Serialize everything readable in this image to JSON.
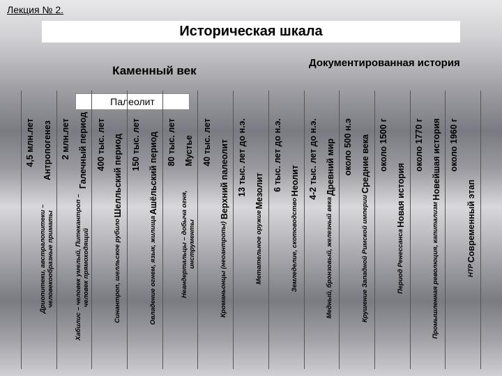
{
  "lecture": "Лекция № 2.",
  "title": "Историческая шкала",
  "era_left": "Каменный век",
  "era_right": "Документированная история",
  "paleo": "Палеолит",
  "cols": [
    {
      "date": "4,5 млн.лет",
      "name": "Антропогенез",
      "desc": "Дриопитеки, австралопитеки – человекообразные приматы"
    },
    {
      "date": "2 млн.лет",
      "name": "Галечный период",
      "desc": "Хабилис – человек умелый, Питекантроп – человек прямоходящий"
    },
    {
      "date": "400 тыс. лет",
      "name": "Шелльский период",
      "desc": "Синантроп, шелльское рубило"
    },
    {
      "date": "150 тыс. лет",
      "name": "Ашёльский период",
      "desc": "Овладение огнем, язык, жилища"
    },
    {
      "date": "80 тыс. лет",
      "name": "Мустье",
      "desc": "Неандертальцы – добыча огня, инструменты"
    },
    {
      "date": "40 тыс. лет",
      "name": "Верхний палеолит",
      "desc": "Кроманьонцы (неоантропы)"
    },
    {
      "date": "13 тыс. лет до н.э.",
      "name": "Мезолит",
      "desc": "Метательное оружие"
    },
    {
      "date": "6 тыс. лет до н.э.",
      "name": "Неолит",
      "desc": "Земледелие, скотоводство"
    },
    {
      "date": "4-2  тыс. лет  до н.э.",
      "name": "Древний мир",
      "desc": "Медный, бронзовый, железный века"
    },
    {
      "date": "около 500 н.э",
      "name": "Средние века",
      "desc": "Крушение Западной Римской империи"
    },
    {
      "date": "около 1500 г",
      "name": "Новая история",
      "desc": "Период Ренессанса"
    },
    {
      "date": "около 1770 г",
      "name": "Новейшая история",
      "desc": "Промышленная революция, капитализм"
    },
    {
      "date": "около 1960 г",
      "name": "Современный этап",
      "desc": "НТР"
    }
  ]
}
